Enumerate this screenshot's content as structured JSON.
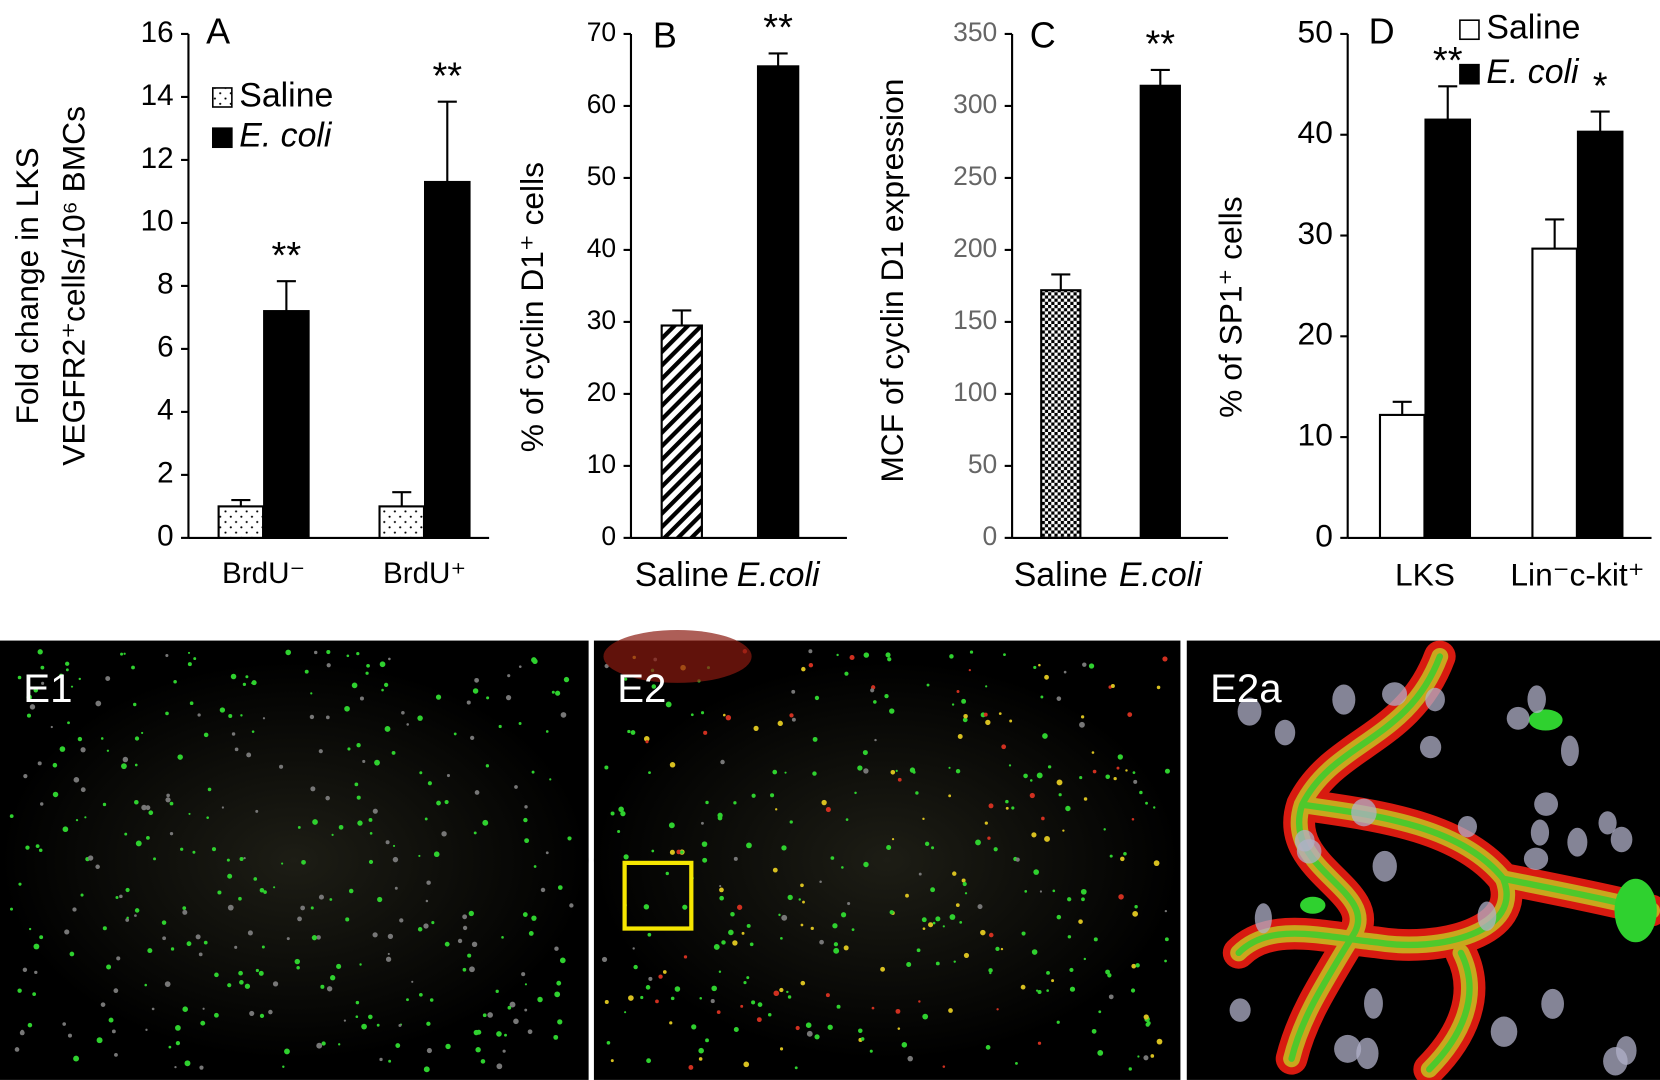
{
  "chart_data": [
    {
      "type": "bar",
      "panel": "A",
      "y_label": [
        "Fold change in LKS",
        "VEGFR2⁺cells/10⁶ BMCs"
      ],
      "categories": [
        "BrdU⁻",
        "BrdU⁺"
      ],
      "series": [
        {
          "name": "Saline",
          "color": "#ffffff",
          "pattern": "dots",
          "values": [
            1.0,
            1.0
          ],
          "errors": [
            0.2,
            0.45
          ]
        },
        {
          "name": "E. coli",
          "color": "#000000",
          "values": [
            7.2,
            11.3
          ],
          "errors": [
            0.95,
            2.55
          ],
          "significance": [
            "**",
            "**"
          ]
        }
      ],
      "ylim": [
        0,
        16
      ],
      "yticks": [
        0,
        2,
        4,
        6,
        8,
        10,
        12,
        14,
        16
      ],
      "legend": "upper left"
    },
    {
      "type": "bar",
      "panel": "B",
      "y_label": "% of cyclin D1⁺ cells",
      "categories": [
        "Saline",
        "E.coli"
      ],
      "values": [
        29.5,
        65.5
      ],
      "errors": [
        2.1,
        1.8
      ],
      "fills": [
        "hatch",
        "#000000"
      ],
      "significance": [
        null,
        "**"
      ],
      "ylim": [
        0,
        70
      ],
      "yticks": [
        0,
        10,
        20,
        30,
        40,
        50,
        60,
        70
      ]
    },
    {
      "type": "bar",
      "panel": "C",
      "y_label": "MCF of cyclin D1 expression",
      "categories": [
        "Saline",
        "E.coli"
      ],
      "values": [
        172,
        314
      ],
      "errors": [
        11,
        11
      ],
      "fills": [
        "checker",
        "#000000"
      ],
      "significance": [
        null,
        "**"
      ],
      "ylim": [
        0,
        350
      ],
      "yticks": [
        0,
        50,
        100,
        150,
        200,
        250,
        300,
        350
      ],
      "tick_color": "#666666"
    },
    {
      "type": "bar",
      "panel": "D",
      "y_label": "% of SP1⁺ cells",
      "categories": [
        "LKS",
        "Lin⁻c-kit⁺"
      ],
      "series": [
        {
          "name": "Saline",
          "color": "#ffffff",
          "values": [
            12.2,
            28.7
          ],
          "errors": [
            1.3,
            2.9
          ]
        },
        {
          "name": "E. coli",
          "color": "#000000",
          "values": [
            41.5,
            40.3
          ],
          "errors": [
            3.3,
            2.0
          ],
          "significance": [
            "**",
            "*"
          ]
        }
      ],
      "ylim": [
        0,
        50
      ],
      "yticks": [
        0,
        10,
        20,
        30,
        40,
        50
      ],
      "legend": "upper right"
    }
  ],
  "images": [
    "E1",
    "E2",
    "E2a"
  ]
}
